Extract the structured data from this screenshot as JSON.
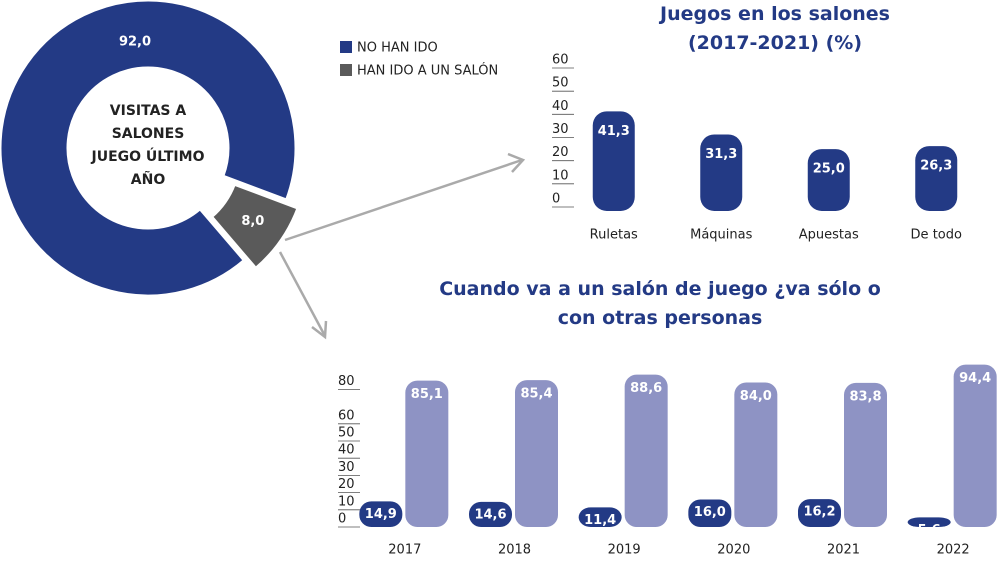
{
  "chart_data": [
    {
      "type": "donut",
      "center_label": "VISITAS A SALONES JUEGO ÚLTIMO AÑO",
      "categories": [
        "NO HAN IDO",
        "HAN IDO A UN SALÓN"
      ],
      "values": [
        92.0,
        8.0
      ],
      "value_labels": [
        "92,0",
        "8,0"
      ],
      "colors": [
        "#233a85",
        "#5a5a5a"
      ]
    },
    {
      "type": "bar",
      "title": "Juegos en los salones (2017-2021) (%)",
      "categories": [
        "Ruletas",
        "Máquinas",
        "Apuestas",
        "De todo"
      ],
      "values": [
        41.3,
        31.3,
        25.0,
        26.3
      ],
      "value_labels": [
        "41,3",
        "31,3",
        "25,0",
        "26,3"
      ],
      "color": "#233a85",
      "ylim": [
        0,
        60
      ],
      "yticks": [
        0,
        10,
        20,
        30,
        40,
        50,
        60
      ]
    },
    {
      "type": "grouped_bar",
      "title": "Cuando va a un salón de juego ¿va sólo o con otras personas",
      "categories": [
        "2017",
        "2018",
        "2019",
        "2020",
        "2021",
        "2022"
      ],
      "series": [
        {
          "color": "#233a85",
          "values": [
            14.9,
            14.6,
            11.4,
            16.0,
            16.2,
            5.6
          ],
          "value_labels": [
            "14,9",
            "14,6",
            "11,4",
            "16,0",
            "16,2",
            "5,6"
          ]
        },
        {
          "color": "#8e93c4",
          "values": [
            85.1,
            85.4,
            88.6,
            84.0,
            83.8,
            94.4
          ],
          "value_labels": [
            "85,1",
            "85,4",
            "88,6",
            "84,0",
            "83,8",
            "94,4"
          ]
        }
      ],
      "ylim": [
        0,
        100
      ],
      "yticks": [
        0,
        10,
        20,
        30,
        40,
        50,
        60,
        80
      ]
    }
  ]
}
